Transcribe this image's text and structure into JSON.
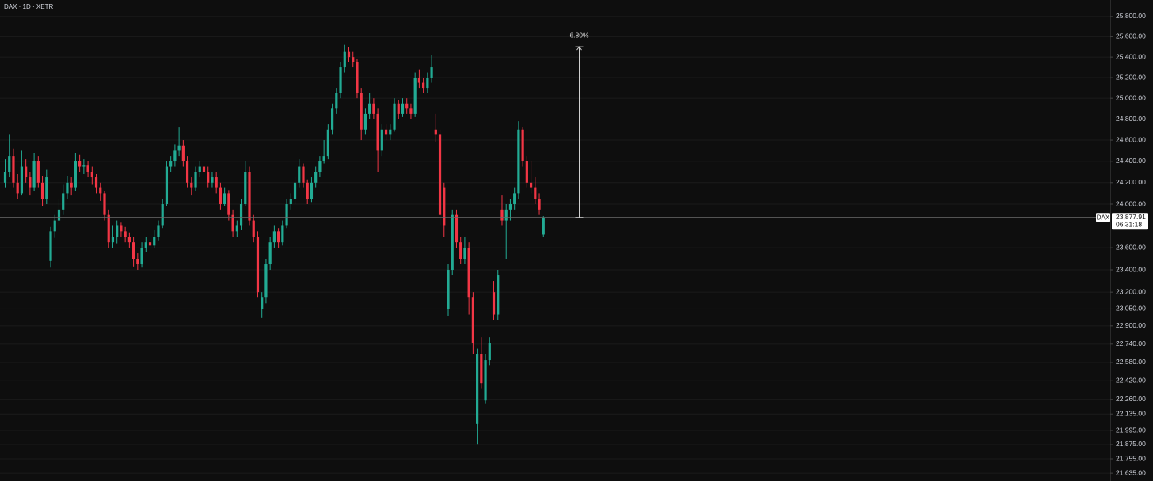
{
  "chart_data": {
    "type": "candlestick",
    "title": "DAX · 1D · XETR",
    "log_scale": true,
    "grid": true,
    "up_color": "#22ab94",
    "down_color": "#f23645",
    "ylim": [
      21570,
      25965
    ],
    "yticks": [
      {
        "value": 25800,
        "label": "25,800.00"
      },
      {
        "value": 25600,
        "label": "25,600.00"
      },
      {
        "value": 25400,
        "label": "25,400.00"
      },
      {
        "value": 25200,
        "label": "25,200.00"
      },
      {
        "value": 25000,
        "label": "25,000.00"
      },
      {
        "value": 24800,
        "label": "24,800.00"
      },
      {
        "value": 24600,
        "label": "24,600.00"
      },
      {
        "value": 24400,
        "label": "24,400.00"
      },
      {
        "value": 24200,
        "label": "24,200.00"
      },
      {
        "value": 24000,
        "label": "24,000.00"
      },
      {
        "value": 23600,
        "label": "23,600.00"
      },
      {
        "value": 23400,
        "label": "23,400.00"
      },
      {
        "value": 23200,
        "label": "23,200.00"
      },
      {
        "value": 23050,
        "label": "23,050.00"
      },
      {
        "value": 22900,
        "label": "22,900.00"
      },
      {
        "value": 22740,
        "label": "22,740.00"
      },
      {
        "value": 22580,
        "label": "22,580.00"
      },
      {
        "value": 22420,
        "label": "22,420.00"
      },
      {
        "value": 22260,
        "label": "22,260.00"
      },
      {
        "value": 22135,
        "label": "22,135.00"
      },
      {
        "value": 21995,
        "label": "21,995.00"
      },
      {
        "value": 21875,
        "label": "21,875.00"
      },
      {
        "value": 21755,
        "label": "21,755.00"
      },
      {
        "value": 21635,
        "label": "21,635.00"
      }
    ],
    "open": [
      24200,
      24300,
      24450,
      24200,
      24100,
      24350,
      24250,
      24150,
      24400,
      24200,
      24050,
      23480,
      23750,
      23850,
      23950,
      24100,
      24200,
      24150,
      24400,
      24350,
      24360,
      24300,
      24250,
      24150,
      24100,
      23900,
      23650,
      23700,
      23800,
      23750,
      23700,
      23650,
      23500,
      23450,
      23600,
      23650,
      23620,
      23700,
      23800,
      24000,
      24350,
      24400,
      24500,
      24550,
      24400,
      24200,
      24150,
      24300,
      24350,
      24300,
      24200,
      24250,
      24150,
      24000,
      24100,
      23900,
      23750,
      23800,
      24000,
      24300,
      23850,
      23700,
      23050,
      23150,
      23450,
      23650,
      23750,
      23650,
      23800,
      24000,
      24050,
      24200,
      24350,
      24200,
      24050,
      24200,
      24300,
      24400,
      24450,
      24700,
      24900,
      25050,
      25300,
      25450,
      25400,
      25350,
      25050,
      24700,
      24850,
      24950,
      24850,
      24500,
      24700,
      24650,
      24700,
      24950,
      24850,
      24950,
      24900,
      24850,
      25200,
      25150,
      25100,
      25200,
      24700,
      24650,
      24150,
      23050,
      23400,
      23900,
      23650,
      23500,
      23600,
      23150,
      22050,
      22650,
      22250,
      22600,
      23200,
      23000,
      23950,
      23850,
      23950,
      24000,
      24100,
      24700,
      24400,
      24200,
      24150,
      24050,
      23720
    ],
    "high": [
      24420,
      24650,
      24520,
      24280,
      24500,
      24420,
      24300,
      24480,
      24450,
      24260,
      24320,
      23790,
      23900,
      24050,
      24180,
      24260,
      24250,
      24480,
      24460,
      24420,
      24400,
      24350,
      24280,
      24200,
      24120,
      23950,
      23800,
      23850,
      23830,
      23790,
      23740,
      23700,
      23550,
      23650,
      23700,
      23720,
      23760,
      23850,
      24050,
      24400,
      24450,
      24560,
      24720,
      24600,
      24450,
      24250,
      24350,
      24400,
      24400,
      24350,
      24300,
      24300,
      24200,
      24150,
      24130,
      23950,
      23850,
      24050,
      24400,
      24350,
      23900,
      23750,
      23200,
      23500,
      23700,
      23800,
      23780,
      23850,
      24050,
      24100,
      24250,
      24420,
      24380,
      24230,
      24250,
      24350,
      24450,
      24600,
      24750,
      24950,
      25100,
      25350,
      25520,
      25500,
      25450,
      25380,
      25100,
      24900,
      25050,
      25000,
      24900,
      24750,
      24750,
      24750,
      25000,
      24980,
      25000,
      25000,
      24950,
      25250,
      25280,
      25200,
      25250,
      25420,
      24850,
      24700,
      24200,
      23450,
      23950,
      23950,
      23700,
      23700,
      23650,
      23200,
      22700,
      22800,
      22650,
      22800,
      23300,
      23400,
      24080,
      24000,
      24050,
      24150,
      24780,
      24720,
      24450,
      24400,
      24250,
      24100,
      23890
    ],
    "low": [
      24150,
      24250,
      24150,
      24050,
      24080,
      24200,
      24080,
      24120,
      24150,
      23980,
      24000,
      23420,
      23690,
      23800,
      23900,
      24050,
      24080,
      24120,
      24300,
      24280,
      24250,
      24180,
      24100,
      24030,
      23850,
      23600,
      23600,
      23640,
      23700,
      23650,
      23600,
      23430,
      23400,
      23420,
      23560,
      23580,
      23600,
      23660,
      23780,
      23980,
      24300,
      24350,
      24450,
      24350,
      24150,
      24080,
      24120,
      24250,
      24250,
      24150,
      24150,
      24100,
      23950,
      23980,
      23850,
      23700,
      23700,
      23760,
      23980,
      23800,
      23650,
      23150,
      22970,
      23100,
      23400,
      23600,
      23600,
      23620,
      23780,
      23950,
      24000,
      24150,
      24150,
      24000,
      24020,
      24150,
      24250,
      24380,
      24420,
      24650,
      24850,
      25000,
      25250,
      25350,
      25300,
      25000,
      24600,
      24650,
      24800,
      24800,
      24300,
      24450,
      24600,
      24600,
      24680,
      24800,
      24820,
      24850,
      24800,
      24820,
      25100,
      25050,
      25050,
      25150,
      24580,
      23800,
      23700,
      22990,
      23350,
      23600,
      23450,
      23450,
      23000,
      22650,
      21880,
      22350,
      22220,
      22550,
      22950,
      22950,
      23800,
      23500,
      23850,
      23950,
      24050,
      24350,
      24150,
      24100,
      24000,
      23900,
      23700
    ],
    "close": [
      24300,
      24450,
      24200,
      24100,
      24350,
      24250,
      24150,
      24400,
      24200,
      24050,
      24250,
      23750,
      23850,
      23950,
      24100,
      24200,
      24150,
      24400,
      24350,
      24360,
      24300,
      24250,
      24150,
      24100,
      23900,
      23650,
      23700,
      23800,
      23750,
      23700,
      23650,
      23500,
      23450,
      23600,
      23650,
      23620,
      23700,
      23800,
      24000,
      24350,
      24400,
      24500,
      24550,
      24400,
      24200,
      24150,
      24300,
      24350,
      24300,
      24200,
      24250,
      24150,
      24000,
      24100,
      23900,
      23750,
      23800,
      24000,
      24300,
      23850,
      23700,
      23200,
      23150,
      23450,
      23650,
      23750,
      23650,
      23800,
      24000,
      24050,
      24200,
      24350,
      24200,
      24050,
      24200,
      24300,
      24400,
      24450,
      24700,
      24900,
      25050,
      25300,
      25450,
      25400,
      25350,
      25050,
      24700,
      24850,
      24950,
      24850,
      24500,
      24700,
      24650,
      24700,
      24950,
      24850,
      24950,
      24900,
      24850,
      25200,
      25150,
      25100,
      25200,
      25300,
      24650,
      23900,
      23800,
      23400,
      23900,
      23650,
      23500,
      23600,
      23150,
      22750,
      22650,
      22400,
      22600,
      22750,
      23000,
      23350,
      23850,
      23950,
      24000,
      24100,
      24700,
      24400,
      24200,
      24150,
      24050,
      23950,
      23877.91
    ],
    "last_price": {
      "value": 23877.91,
      "label": "23,877.91"
    },
    "symbol": "DAX",
    "countdown": "06:31:18",
    "measure": {
      "label": "6.80%",
      "from": 23877.91,
      "to": 25501
    }
  }
}
